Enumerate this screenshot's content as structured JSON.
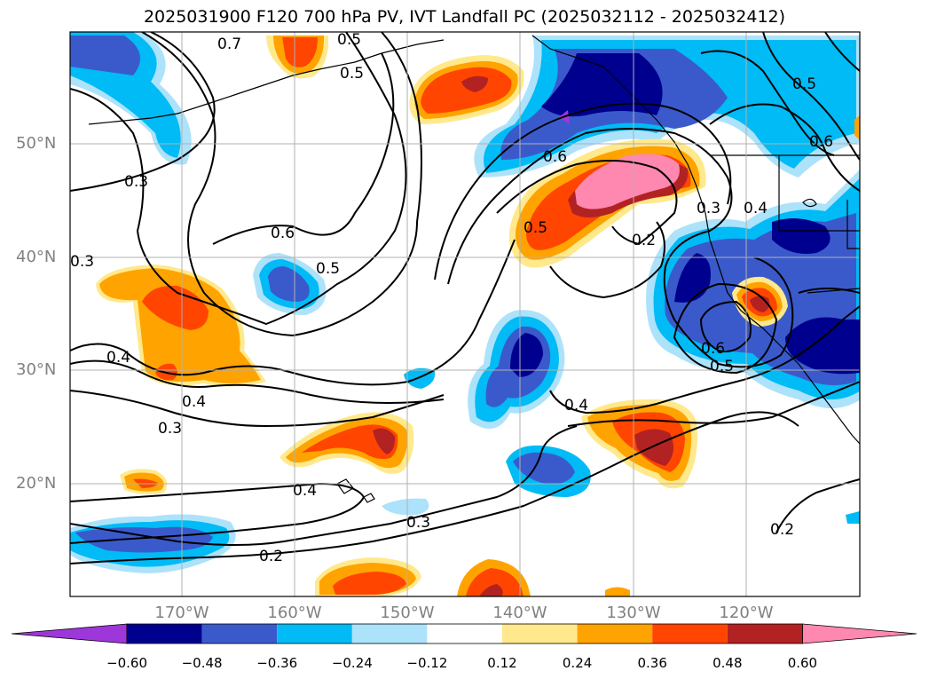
{
  "title": "2025031900 F120 700 hPa PV, IVT Landfall PC (2025032112 - 2025032412)",
  "map": {
    "domain": "North Pacific",
    "lat_labels": [
      "50°N",
      "40°N",
      "30°N",
      "20°N"
    ],
    "lon_labels": [
      "170°W",
      "160°W",
      "150°W",
      "140°W",
      "130°W",
      "120°W"
    ],
    "contour_labels": [
      {
        "text": "0.7"
      },
      {
        "text": "0.5"
      },
      {
        "text": "0.3"
      },
      {
        "text": "0.6"
      },
      {
        "text": "0.5"
      },
      {
        "text": "0.3"
      },
      {
        "text": "0.4"
      },
      {
        "text": "0.4"
      },
      {
        "text": "0.3"
      },
      {
        "text": "0.4"
      },
      {
        "text": "0.3"
      },
      {
        "text": "0.2"
      },
      {
        "text": "0.6"
      },
      {
        "text": "0.5"
      },
      {
        "text": "0.2"
      },
      {
        "text": "0.3"
      },
      {
        "text": "0.6"
      },
      {
        "text": "0.5"
      },
      {
        "text": "0.4"
      },
      {
        "text": "0.4"
      },
      {
        "text": "0.5"
      },
      {
        "text": "0.6"
      },
      {
        "text": "0.2"
      },
      {
        "text": "0.5"
      }
    ]
  },
  "colorbar": {
    "colors": [
      "#9d37d9",
      "#00008e",
      "#3a5acc",
      "#00bbf5",
      "#ade2fb",
      "#ffffff",
      "#ffe98c",
      "#ffa300",
      "#ff4500",
      "#b22222",
      "#ff88b0"
    ],
    "tick_labels": [
      "−0.60",
      "−0.48",
      "−0.36",
      "−0.24",
      "−0.12",
      "0.12",
      "0.24",
      "0.36",
      "0.48",
      "0.60"
    ]
  }
}
